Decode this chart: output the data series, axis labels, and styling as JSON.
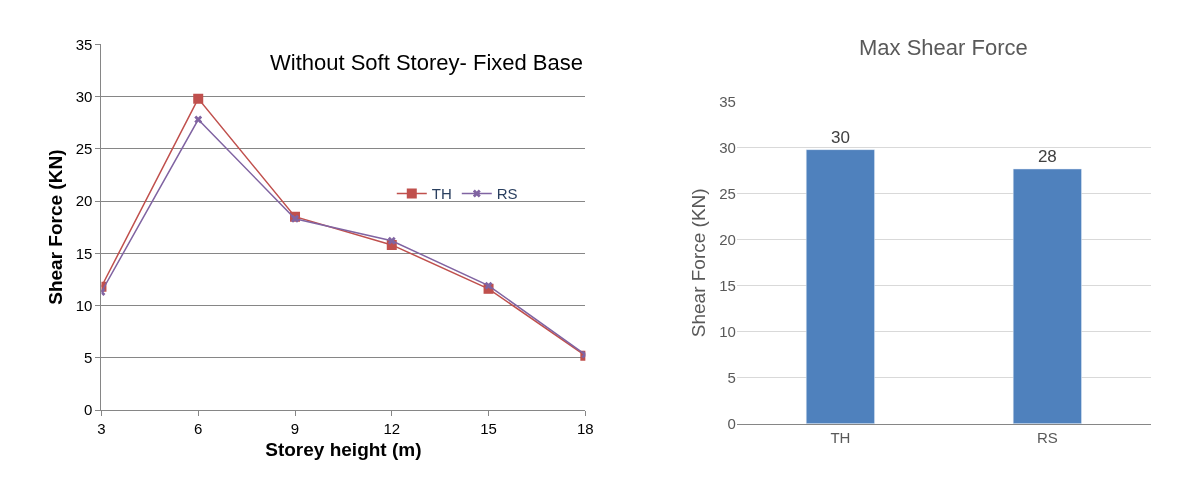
{
  "chart_data": [
    {
      "type": "line",
      "title": "Without Soft Storey- Fixed Base",
      "xlabel": "Storey height (m)",
      "ylabel": "Shear Force (KN)",
      "x": [
        3,
        6,
        9,
        12,
        15,
        18
      ],
      "series": [
        {
          "name": "TH",
          "color": "#c0504d",
          "marker": "square",
          "values": [
            11.8,
            29.8,
            18.5,
            15.8,
            11.6,
            5.2
          ]
        },
        {
          "name": "RS",
          "color": "#8064a2",
          "marker": "cross",
          "values": [
            11.3,
            27.8,
            18.3,
            16.2,
            11.9,
            5.3
          ]
        }
      ],
      "xlim": [
        3,
        18
      ],
      "xticks": [
        3,
        6,
        9,
        12,
        15,
        18
      ],
      "ylim": [
        0,
        35
      ],
      "yticks": [
        0,
        5,
        10,
        15,
        20,
        25,
        30,
        35
      ],
      "grid": "y",
      "legend": "right"
    },
    {
      "type": "bar",
      "title": "Max Shear Force",
      "ylabel": "Shear Force (KN)",
      "categories": [
        "TH",
        "RS"
      ],
      "values": [
        29.8,
        27.7
      ],
      "value_labels": [
        "30",
        "28"
      ],
      "color": "#4f81bd",
      "ylim": [
        0,
        35
      ],
      "yticks": [
        0,
        5,
        10,
        15,
        20,
        25,
        30,
        35
      ],
      "grid": "y"
    }
  ]
}
